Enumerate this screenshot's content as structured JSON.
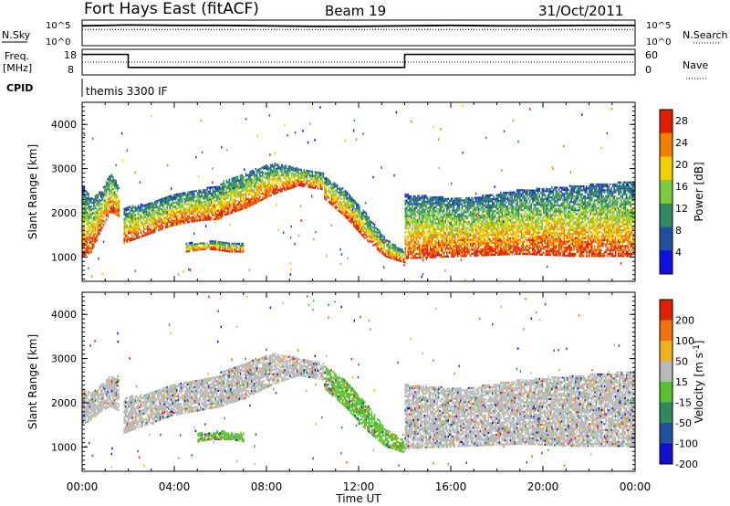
{
  "header": {
    "station": "Fort Hays East (fitACF)",
    "beam": "Beam 19",
    "date": "31/Oct/2011"
  },
  "chart_data": [
    {
      "type": "line",
      "id": "noise",
      "left_label": "N.Sky",
      "right_label": "N.Search",
      "y_scale": "log",
      "left_ticks": [
        "10^5",
        "10^0"
      ],
      "right_ticks": [
        "10^5",
        "10^0"
      ],
      "series": [
        {
          "style": "solid",
          "x": [
            0,
            2,
            4,
            6,
            8,
            10,
            12,
            14,
            16,
            18,
            20,
            22,
            24
          ],
          "y_log": [
            4.1,
            4.3,
            4.2,
            4.2,
            4.1,
            4.0,
            4.0,
            4.1,
            4.2,
            4.1,
            4.1,
            4.2,
            4.2
          ]
        },
        {
          "style": "dotted",
          "x": [
            0,
            6,
            12,
            18,
            24
          ],
          "y_log": [
            3.3,
            3.3,
            3.3,
            3.3,
            3.3
          ]
        }
      ]
    },
    {
      "type": "line",
      "id": "freq",
      "left_label": "Freq.",
      "left_unit": "[MHz]",
      "right_label": "Nave",
      "left_ticks": [
        18,
        8
      ],
      "right_ticks": [
        60,
        0
      ],
      "ylim_left": [
        8,
        18
      ],
      "ylim_right": [
        0,
        60
      ],
      "series": [
        {
          "name": "freq",
          "style": "solid",
          "x": [
            0,
            2,
            2,
            14,
            14,
            24
          ],
          "y": [
            16.5,
            16.5,
            10.6,
            10.6,
            16.5,
            16.5
          ]
        },
        {
          "name": "nave",
          "style": "dotted",
          "x": [
            0,
            24
          ],
          "y": [
            30,
            30
          ]
        }
      ]
    },
    {
      "type": "text",
      "id": "cpid",
      "label": "CPID",
      "value": "themis 3300 IF"
    },
    {
      "type": "heatmap",
      "id": "power",
      "ylabel": "Slant Range [km]",
      "xlim": [
        0,
        24
      ],
      "ylim": [
        450,
        4500
      ],
      "yticks": [
        1000,
        2000,
        3000,
        4000
      ],
      "colorbar_label": "Power [dB]",
      "colorbar_ticks": [
        4,
        8,
        12,
        16,
        20,
        24,
        28
      ],
      "colorbar_range": [
        0,
        30
      ],
      "colors": [
        "#1010e0",
        "#2050a0",
        "#2f8a60",
        "#80c840",
        "#f0d000",
        "#f08000",
        "#e02000"
      ],
      "bands": [
        {
          "t0": 0.0,
          "t1": 1.6,
          "r_low": [
            1000,
            1100,
            1600,
            2000,
            1900
          ],
          "r_high": [
            2600,
            2300,
            2500,
            2900,
            2600
          ],
          "p": 24
        },
        {
          "t0": 1.8,
          "t1": 6.0,
          "r_low": [
            1300,
            1500,
            1700,
            1800,
            1850
          ],
          "r_high": [
            2100,
            2200,
            2400,
            2500,
            2600
          ],
          "p": 22
        },
        {
          "t0": 6.0,
          "t1": 10.5,
          "r_low": [
            1900,
            2100,
            2400,
            2600,
            2500
          ],
          "r_high": [
            2700,
            2900,
            3100,
            3000,
            2900
          ],
          "p": 14
        },
        {
          "t0": 10.5,
          "t1": 14.0,
          "r_low": [
            2300,
            1900,
            1400,
            1000,
            850
          ],
          "r_high": [
            2800,
            2500,
            2000,
            1400,
            1100
          ],
          "p": 20
        },
        {
          "t0": 14.0,
          "t1": 24.0,
          "r_low": [
            950,
            1000,
            1050,
            1000,
            1000
          ],
          "r_high": [
            2400,
            2300,
            2500,
            2600,
            2700
          ],
          "p": 24
        },
        {
          "t0": 4.5,
          "t1": 7.0,
          "r_low": [
            1100,
            1150,
            1150,
            1100,
            1100
          ],
          "r_high": [
            1300,
            1300,
            1350,
            1300,
            1300
          ],
          "p": 8
        }
      ]
    },
    {
      "type": "heatmap",
      "id": "velocity",
      "ylabel": "Slant Range [km]",
      "xlabel": "Time UT",
      "xticks": [
        "00:00",
        "04:00",
        "08:00",
        "12:00",
        "16:00",
        "20:00",
        "00:00"
      ],
      "xtick_hours": [
        0,
        4,
        8,
        12,
        16,
        20,
        24
      ],
      "xlim": [
        0,
        24
      ],
      "ylim": [
        450,
        4500
      ],
      "yticks": [
        1000,
        2000,
        3000,
        4000
      ],
      "colorbar_label": "Velocity [m s",
      "colorbar_label_sup": "-1",
      "colorbar_label_end": "]",
      "colorbar_ticks": [
        200,
        100,
        50,
        15,
        -15,
        -50,
        -100,
        -200
      ],
      "colors": [
        "#1010d0",
        "#2050a0",
        "#2e8a5a",
        "#58c030",
        "#b8b8b8",
        "#f0b020",
        "#f07010",
        "#e02000"
      ],
      "bands": [
        {
          "t0": 0.0,
          "t1": 1.6,
          "r_low": [
            1500,
            1600,
            1800,
            1900,
            1800
          ],
          "r_high": [
            2300,
            2200,
            2400,
            2600,
            2500
          ],
          "color": "#b8b8b8"
        },
        {
          "t0": 1.8,
          "t1": 6.0,
          "r_low": [
            1300,
            1500,
            1700,
            1800,
            1900
          ],
          "r_high": [
            2100,
            2200,
            2400,
            2500,
            2600
          ],
          "color": "#b8b8b8"
        },
        {
          "t0": 6.0,
          "t1": 10.5,
          "r_low": [
            1900,
            2100,
            2400,
            2600,
            2500
          ],
          "r_high": [
            2700,
            2900,
            3100,
            3000,
            2900
          ],
          "color": "#b8b8b8"
        },
        {
          "t0": 10.5,
          "t1": 14.0,
          "r_low": [
            2300,
            1900,
            1400,
            1000,
            850
          ],
          "r_high": [
            2800,
            2500,
            2000,
            1400,
            1100
          ],
          "color": "#58c030"
        },
        {
          "t0": 14.0,
          "t1": 24.0,
          "r_low": [
            950,
            1000,
            1050,
            1000,
            1000
          ],
          "r_high": [
            2400,
            2300,
            2500,
            2600,
            2700
          ],
          "color": "#b8b8b8"
        },
        {
          "t0": 5.0,
          "t1": 7.0,
          "r_low": [
            1100,
            1150,
            1150,
            1150,
            1100
          ],
          "r_high": [
            1300,
            1300,
            1350,
            1300,
            1300
          ],
          "color": "#58c030"
        }
      ]
    }
  ]
}
